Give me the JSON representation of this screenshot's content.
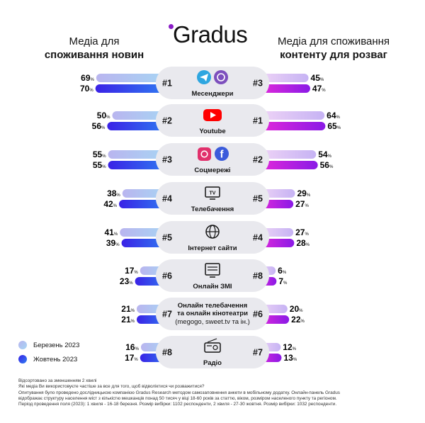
{
  "brand": {
    "logo": "Gradus"
  },
  "headers": {
    "left_line1": "Медіа для",
    "left_line2": "споживання новин",
    "right_line1": "Медіа для споживання",
    "right_line2": "контенту для розваг"
  },
  "legend": {
    "march": "Березень 2023",
    "october": "Жовтень 2023"
  },
  "colors": {
    "march_left": "#b8b4ee",
    "october_left": "#3a2be8",
    "march_right": "#d3b6f4",
    "october_right": "#b61ce8",
    "pill": "#e9e9ee",
    "accent": "#8a1cc6"
  },
  "chart_data": {
    "type": "bar",
    "title": "Gradus",
    "orientation": "mirrored horizontal bars",
    "left_title": "Медіа для споживання новин",
    "right_title": "Медіа для споживання контенту для розваг",
    "unit": "%",
    "series_names": [
      "Березень 2023",
      "Жовтень 2023"
    ],
    "categories": [
      {
        "name_lines": [
          "Месенджери"
        ],
        "icon": "telegram-viber-icons",
        "news_rank": "#1",
        "news_march": 69,
        "news_october": 70,
        "ent_rank": "#3",
        "ent_march": 45,
        "ent_october": 47
      },
      {
        "name_lines": [
          "Youtube"
        ],
        "icon": "youtube-icon",
        "news_rank": "#2",
        "news_march": 50,
        "news_october": 56,
        "ent_rank": "#1",
        "ent_march": 64,
        "ent_october": 65
      },
      {
        "name_lines": [
          "Соцмережі"
        ],
        "icon": "instagram-facebook-icons",
        "news_rank": "#3",
        "news_march": 55,
        "news_october": 55,
        "ent_rank": "#2",
        "ent_march": 54,
        "ent_october": 56
      },
      {
        "name_lines": [
          "Телебачення"
        ],
        "icon": "tv-icon",
        "news_rank": "#4",
        "news_march": 38,
        "news_october": 42,
        "ent_rank": "#5",
        "ent_march": 29,
        "ent_october": 27
      },
      {
        "name_lines": [
          "Інтернет сайти"
        ],
        "icon": "globe-icon",
        "news_rank": "#5",
        "news_march": 41,
        "news_october": 39,
        "ent_rank": "#4",
        "ent_march": 27,
        "ent_october": 28
      },
      {
        "name_lines": [
          "Онлайн ЗМІ"
        ],
        "icon": "online-media-icon",
        "news_rank": "#6",
        "news_march": 17,
        "news_october": 23,
        "ent_rank": "#8",
        "ent_march": 6,
        "ent_october": 7
      },
      {
        "name_lines": [
          "Онлайн телебачення",
          "та онлайн кінотеатри",
          "(megogo, sweet.tv та ін.)"
        ],
        "icon": "",
        "news_rank": "#7",
        "news_march": 21,
        "news_october": 21,
        "ent_rank": "#6",
        "ent_march": 20,
        "ent_october": 22
      },
      {
        "name_lines": [
          "Радіо"
        ],
        "icon": "radio-icon",
        "news_rank": "#8",
        "news_march": 16,
        "news_october": 17,
        "ent_rank": "#7",
        "ent_march": 12,
        "ent_october": 13
      }
    ]
  },
  "footer": {
    "line1": "Відсортовано за зменшенням 2 хвилі",
    "line2": "Які медіа Ви використовуєте частіше за все для того, щоб відволіктися чи розважитися?",
    "line3": "Опитування було проведено дослідницькою компанією Gradus Research методом самозаповнення анкети в мобільному додатку. Онлайн-панель Gradus",
    "line4": "відображає структуру населення міст з кількістю мешканців понад 50 тисяч у віці 18-60 років за статтю, віком, розміром населеного пункту та регіоном.",
    "line5": "Період проведення поля (2023): 1 хвиля - 16-18 березня. Розмір вибірки: 1102 респонденти, 2 хвиля - 27-30 жовтня. Розмір вибірки: 1032 респонденти."
  }
}
